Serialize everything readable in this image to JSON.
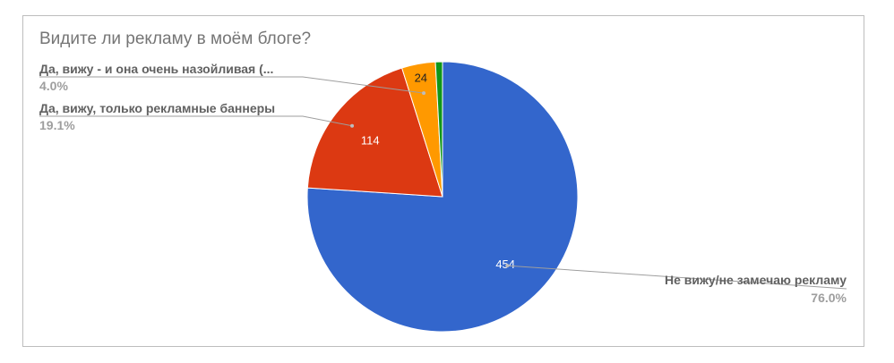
{
  "chart_data": {
    "type": "pie",
    "title": "Видите ли рекламу в моём блоге?",
    "slices": [
      {
        "label": "Не вижу/не замечаю рекламу",
        "value": 454,
        "percent_label": "76.0%",
        "color": "#3366cc",
        "value_color": "#ffffff"
      },
      {
        "label": "Да, вижу, только рекламные баннеры",
        "value": 114,
        "percent_label": "19.1%",
        "color": "#dc3912",
        "value_color": "#ffffff"
      },
      {
        "label": "Да, вижу - и она очень назойливая (...",
        "value": 24,
        "percent_label": "4.0%",
        "color": "#ff9900",
        "value_color": "#212121"
      },
      {
        "label": "",
        "value": 5,
        "percent_label": "",
        "color": "#109618",
        "value_color": "#ffffff"
      }
    ],
    "start_angle_deg": 0,
    "direction": "clockwise",
    "legend": "labeled callouts"
  }
}
